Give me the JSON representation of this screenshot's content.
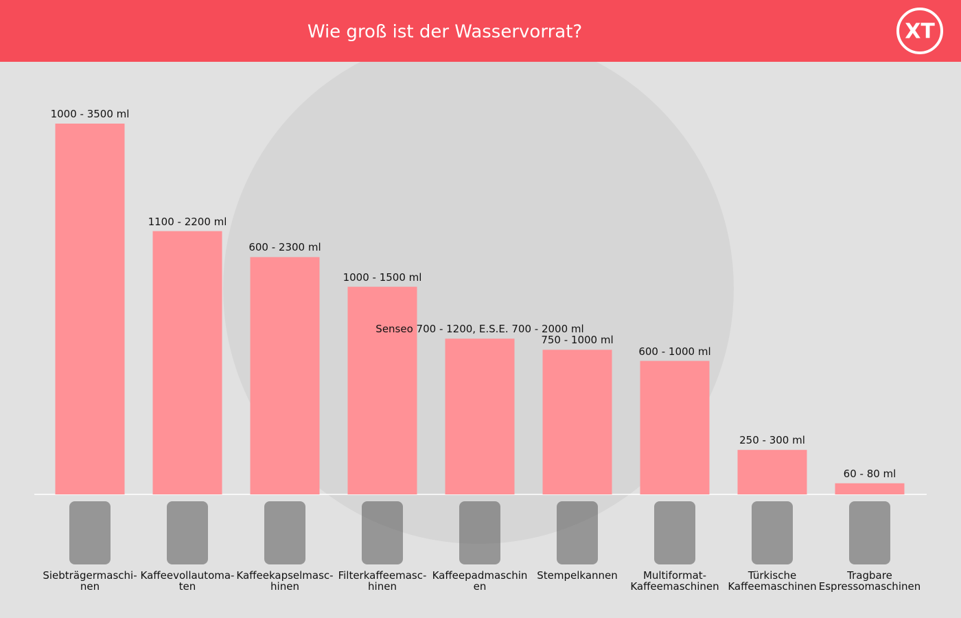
{
  "chart_data": {
    "type": "bar",
    "title": "Wie groß ist der Wasservorrat?",
    "logo": "XT",
    "categories": [
      "Siebträgermaschi-\nnen",
      "Kaffeevollautoma-\nten",
      "Kaffeekapselmasc-\nhinen",
      "Filterkaffeemasc-\nhinen",
      "Kaffeepadmaschin\nen",
      "Stempelkannen",
      "Multiformat-\nKaffeemaschinen",
      "Türkische\nKaffeemaschinen",
      "Tragbare\nEspressomaschinen"
    ],
    "values": [
      100,
      71,
      64,
      56,
      42,
      39,
      36,
      12,
      3
    ],
    "labels": [
      "1000 - 3500 ml",
      "1100 - 2200 ml",
      "600 - 2300 ml",
      "1000 - 1500 ml",
      "Senseo 700 - 1200, E.S.E. 700 - 2000 ml",
      "750 - 1000 ml",
      "600 - 1000 ml",
      "250 - 300 ml",
      "60 - 80 ml"
    ],
    "color": "#ff9196",
    "ylim": [
      0,
      100
    ]
  }
}
